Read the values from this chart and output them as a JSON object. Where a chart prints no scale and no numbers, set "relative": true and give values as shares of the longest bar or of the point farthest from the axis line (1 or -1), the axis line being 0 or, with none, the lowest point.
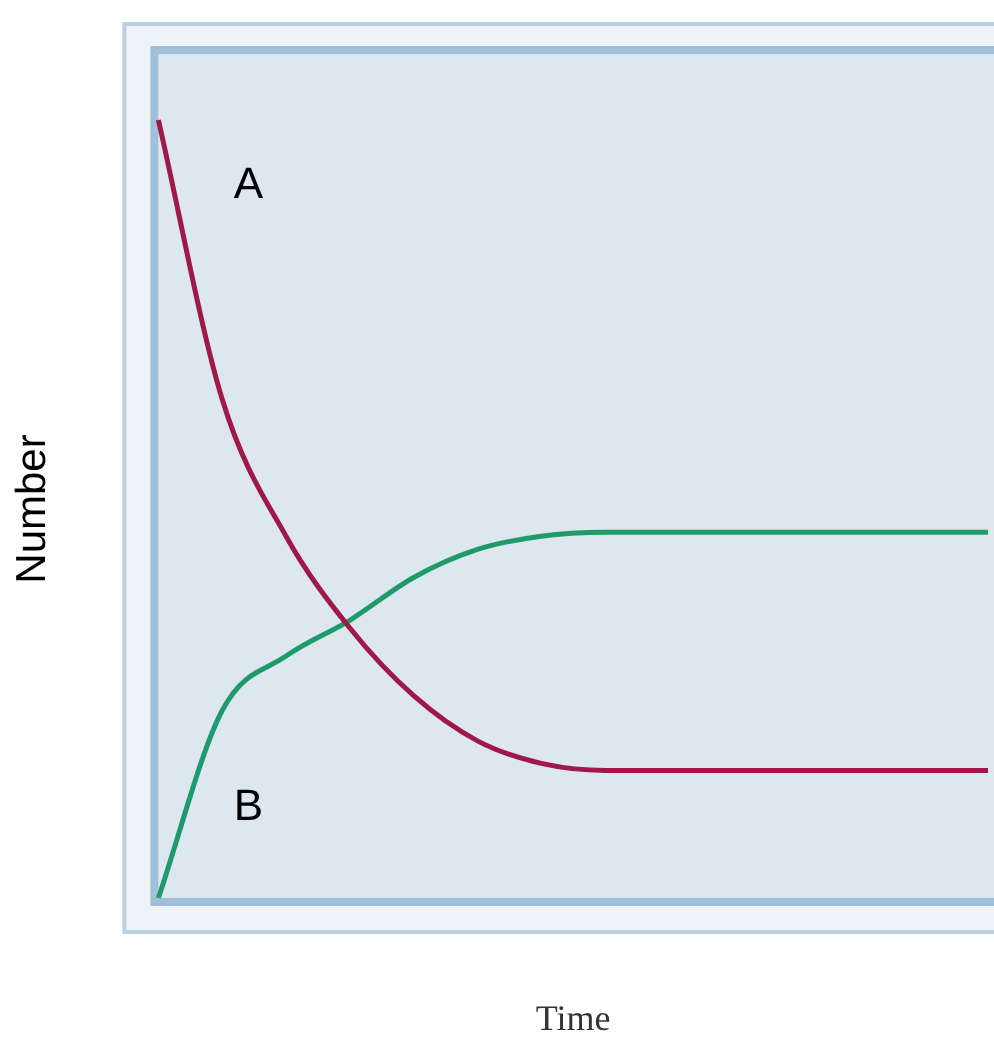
{
  "chart_data": {
    "type": "line",
    "relative": true,
    "xlabel": "Time",
    "ylabel": "Number",
    "categories": [
      null,
      null,
      null,
      null,
      null,
      null,
      null,
      null,
      null,
      null,
      null,
      null,
      null,
      null
    ],
    "legend": false,
    "grid": false,
    "marker": "none",
    "series": [
      {
        "name": "A",
        "color": "#a0174a",
        "values": [
          1.0,
          0.641,
          0.465,
          0.347,
          0.26,
          0.202,
          0.173,
          0.164,
          0.164,
          0.164,
          0.164,
          0.164,
          0.164,
          0.164
        ]
      },
      {
        "name": "B",
        "color": "#1f9a6a",
        "values": [
          0,
          0.241,
          0.311,
          0.357,
          0.412,
          0.448,
          0.465,
          0.47,
          0.47,
          0.47,
          0.47,
          0.47,
          0.47,
          0.47
        ]
      }
    ]
  }
}
